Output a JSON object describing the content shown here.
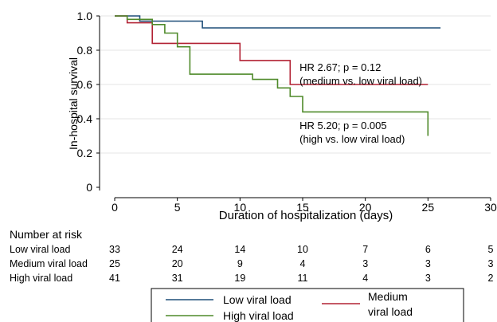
{
  "chart_data": {
    "type": "line",
    "subtype": "kaplan-meier step",
    "xlabel": "Duration of hospitalization (days)",
    "ylabel": "In-hospital survival",
    "xlim": [
      0,
      30
    ],
    "ylim": [
      0,
      1.0
    ],
    "x_ticks": [
      0,
      5,
      10,
      15,
      20,
      25,
      30
    ],
    "y_ticks": [
      0,
      0.2,
      0.4,
      0.6,
      0.8,
      1.0
    ],
    "y_tick_labels": [
      "0",
      "0.2",
      "0.4",
      "0.6",
      "0.8",
      "1.0"
    ],
    "grid": "horizontal",
    "series": [
      {
        "name": "Low viral load",
        "color": "#1f4e79",
        "points": [
          [
            0,
            1.0
          ],
          [
            2,
            1.0
          ],
          [
            2,
            0.97
          ],
          [
            7,
            0.97
          ],
          [
            7,
            0.93
          ],
          [
            26,
            0.93
          ]
        ]
      },
      {
        "name": "Medium viral load",
        "color": "#b22234",
        "points": [
          [
            0,
            1.0
          ],
          [
            1,
            1.0
          ],
          [
            1,
            0.96
          ],
          [
            3,
            0.96
          ],
          [
            3,
            0.84
          ],
          [
            10,
            0.84
          ],
          [
            10,
            0.74
          ],
          [
            14,
            0.74
          ],
          [
            14,
            0.6
          ],
          [
            25,
            0.6
          ]
        ]
      },
      {
        "name": "High viral load",
        "color": "#4f8a2a",
        "points": [
          [
            0,
            1.0
          ],
          [
            1,
            1.0
          ],
          [
            1,
            0.98
          ],
          [
            3,
            0.98
          ],
          [
            3,
            0.95
          ],
          [
            4,
            0.95
          ],
          [
            4,
            0.9
          ],
          [
            5,
            0.9
          ],
          [
            5,
            0.82
          ],
          [
            6,
            0.82
          ],
          [
            6,
            0.66
          ],
          [
            11,
            0.66
          ],
          [
            11,
            0.63
          ],
          [
            13,
            0.63
          ],
          [
            13,
            0.58
          ],
          [
            14,
            0.58
          ],
          [
            14,
            0.53
          ],
          [
            15,
            0.53
          ],
          [
            15,
            0.44
          ],
          [
            25,
            0.44
          ],
          [
            25,
            0.3
          ]
        ]
      }
    ],
    "annotations": [
      {
        "lines": [
          "HR 2.67; p = 0.12",
          "(medium vs. low viral load)"
        ],
        "at": [
          14.5,
          0.68
        ]
      },
      {
        "lines": [
          "HR 5.20; p = 0.005",
          "(high vs. low viral load)"
        ],
        "at": [
          14.5,
          0.34
        ]
      }
    ],
    "risk_table": {
      "title": "Number at risk",
      "x": [
        0,
        5,
        10,
        15,
        20,
        25,
        30
      ],
      "rows": [
        {
          "label": "Low viral load",
          "values": [
            "33",
            "24",
            "14",
            "10",
            "7",
            "6",
            "5"
          ]
        },
        {
          "label": "Medium viral load",
          "values": [
            "25",
            "20",
            "9",
            "4",
            "3",
            "3",
            "3"
          ]
        },
        {
          "label": "High viral load",
          "values": [
            "41",
            "31",
            "19",
            "11",
            "4",
            "3",
            "2"
          ]
        }
      ]
    },
    "legend": {
      "position": "bottom",
      "items": [
        {
          "label": "Low viral load",
          "color": "#1f4e79"
        },
        {
          "label": "High viral load",
          "color": "#4f8a2a"
        },
        {
          "label_lines": [
            "Medium",
            "viral load"
          ],
          "color": "#b22234"
        }
      ]
    }
  }
}
